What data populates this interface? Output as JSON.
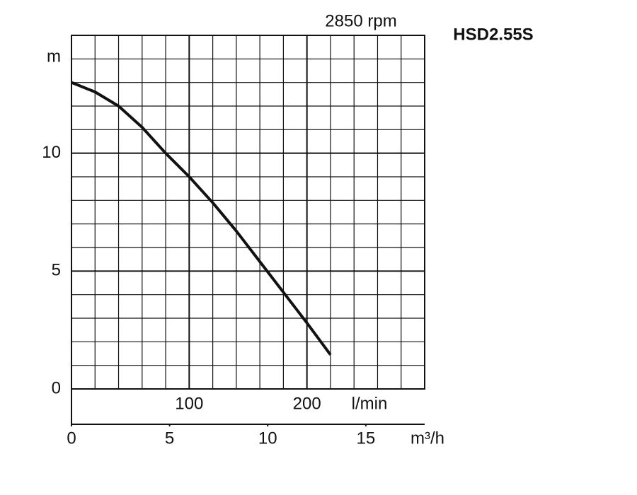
{
  "chart_data": {
    "type": "line",
    "title": "HSD2.55S",
    "subtitle": "2850 rpm",
    "y_label": "m",
    "x_label": "l/min",
    "x2_label": "m³/h",
    "xlim": [
      0,
      300
    ],
    "xticks": [
      100,
      200
    ],
    "x_minor_step": 20,
    "x2lim": [
      0,
      18
    ],
    "x2ticks": [
      0,
      5,
      10,
      15
    ],
    "ylim": [
      0,
      15
    ],
    "yticks": [
      0,
      5,
      10
    ],
    "y_minor_step": 1,
    "grid": true,
    "x": [
      0,
      20,
      40,
      60,
      80,
      100,
      120,
      140,
      160,
      180,
      200,
      220
    ],
    "series": [
      {
        "color": "#111111",
        "values": [
          13.0,
          12.6,
          12.0,
          11.1,
          10.0,
          9.0,
          7.9,
          6.7,
          5.4,
          4.1,
          2.8,
          1.45
        ]
      }
    ]
  }
}
